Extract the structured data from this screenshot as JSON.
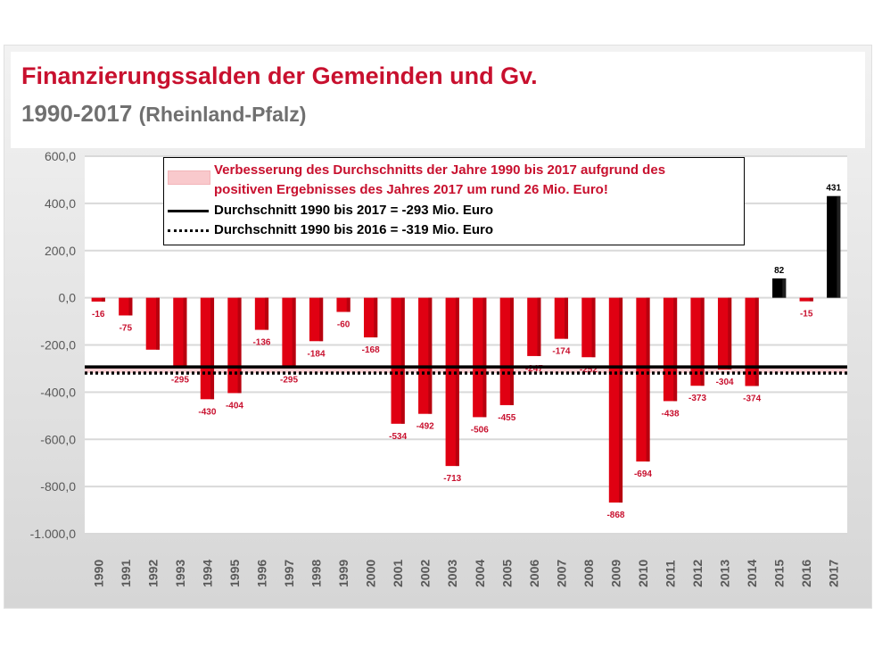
{
  "title": "Finanzierungssalden der Gemeinden und Gv.",
  "subtitle_years": "1990-2017",
  "subtitle_region": "(Rheinland-Pfalz)",
  "legend": {
    "band_line1": "Verbesserung des Durchschnitts der Jahre 1990 bis 2017 aufgrund des",
    "band_line2": "positiven Ergebnisses des Jahres 2017 um rund 26 Mio. Euro!",
    "solid": "Durchschnitt 1990 bis 2017 = -293 Mio. Euro",
    "dotted": "Durchschnitt 1990 bis 2016 = -319 Mio. Euro"
  },
  "colors": {
    "negative": "#e00012",
    "positive": "#000000",
    "band": "#f9c9cc",
    "label": "#c8102e"
  },
  "chart_data": {
    "type": "bar",
    "categories": [
      "1990",
      "1991",
      "1992",
      "1993",
      "1994",
      "1995",
      "1996",
      "1997",
      "1998",
      "1999",
      "2000",
      "2001",
      "2002",
      "2003",
      "2004",
      "2005",
      "2006",
      "2007",
      "2008",
      "2009",
      "2010",
      "2011",
      "2012",
      "2013",
      "2014",
      "2015",
      "2016",
      "2017"
    ],
    "values": [
      -16,
      -75,
      -220,
      -295,
      -430,
      -404,
      -136,
      -295,
      -184,
      -60,
      -168,
      -534,
      -492,
      -713,
      -506,
      -455,
      -247,
      -174,
      -252,
      -868,
      -694,
      -438,
      -373,
      -304,
      -374,
      82,
      -15,
      431
    ],
    "labels": [
      "-16",
      "-75",
      "",
      "-295",
      "-430",
      "-404",
      "-136",
      "-295",
      "-184",
      "-60",
      "-168",
      "-534",
      "-492",
      "-713",
      "-506",
      "-455",
      "-247",
      "-174",
      "-252",
      "-868",
      "-694",
      "-438",
      "-373",
      "-304",
      "-374",
      "82",
      "-15",
      "431"
    ],
    "yticks": [
      "600,0",
      "400,0",
      "200,0",
      "0,0",
      "-200,0",
      "-400,0",
      "-600,0",
      "-800,0",
      "-1.000,0"
    ],
    "ylim": [
      -1000,
      600
    ],
    "avg_1990_2017": -293,
    "avg_1990_2016": -319,
    "grid": true
  }
}
